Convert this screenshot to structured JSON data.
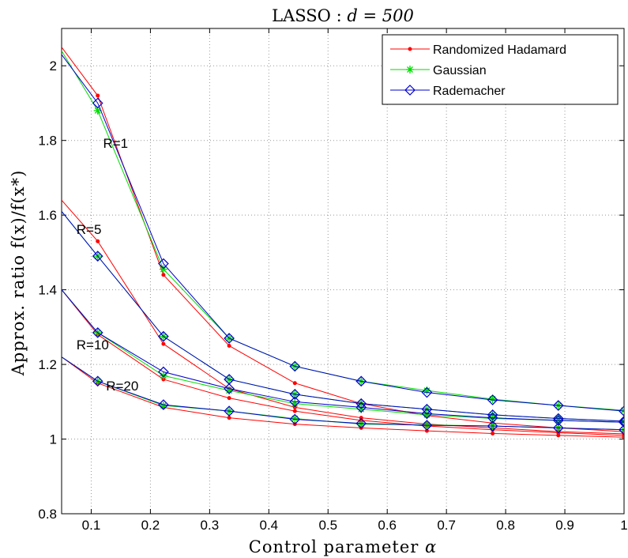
{
  "chart_data": {
    "type": "line",
    "title_text": "LASSO : ",
    "title_math": "d = 500",
    "xlabel_text": "Control parameter ",
    "xlabel_symbol": "α",
    "ylabel": "Approx. ratio f(x)/f(x*)",
    "xlim": [
      0.05,
      1.0
    ],
    "ylim": [
      0.8,
      2.1
    ],
    "xticks": [
      0.1,
      0.2,
      0.3,
      0.4,
      0.5,
      0.6,
      0.7,
      0.8,
      0.9,
      1
    ],
    "xtick_labels": [
      "0.1",
      "0.2",
      "0.3",
      "0.4",
      "0.5",
      "0.6",
      "0.7",
      "0.8",
      "0.9",
      "1"
    ],
    "yticks": [
      0.8,
      1.0,
      1.2,
      1.4,
      1.6,
      1.8,
      2.0
    ],
    "ytick_labels": [
      "0.8",
      "1",
      "1.2",
      "1.4",
      "1.6",
      "1.8",
      "2"
    ],
    "grid": true,
    "legend_position": "top-right",
    "x": [
      0.05,
      0.111,
      0.222,
      0.333,
      0.444,
      0.556,
      0.667,
      0.778,
      0.889,
      1.0
    ],
    "series": [
      {
        "name": "Randomized Hadamard",
        "color": "#ff0000",
        "marker": "dot",
        "curves": [
          {
            "label": "R=1",
            "values": [
              2.05,
              1.92,
              1.44,
              1.25,
              1.15,
              1.095,
              1.063,
              1.043,
              1.03,
              1.02
            ]
          },
          {
            "label": "R=5",
            "values": [
              1.64,
              1.53,
              1.255,
              1.135,
              1.085,
              1.057,
              1.04,
              1.03,
              1.02,
              1.014
            ]
          },
          {
            "label": "R=10",
            "values": [
              1.4,
              1.28,
              1.16,
              1.11,
              1.075,
              1.05,
              1.035,
              1.025,
              1.017,
              1.01
            ]
          },
          {
            "label": "R=20",
            "values": [
              1.22,
              1.15,
              1.085,
              1.057,
              1.04,
              1.03,
              1.022,
              1.015,
              1.01,
              1.005
            ]
          }
        ]
      },
      {
        "name": "Gaussian",
        "color": "#00dd00",
        "marker": "star",
        "curves": [
          {
            "label": "R=1",
            "values": [
              2.04,
              1.88,
              1.455,
              1.27,
              1.195,
              1.155,
              1.13,
              1.107,
              1.09,
              1.077
            ]
          },
          {
            "label": "R=5",
            "values": [
              1.61,
              1.49,
              1.275,
              1.16,
              1.12,
              1.095,
              1.08,
              1.065,
              1.055,
              1.048
            ]
          },
          {
            "label": "R=10",
            "values": [
              1.4,
              1.285,
              1.17,
              1.13,
              1.095,
              1.08,
              1.065,
              1.055,
              1.05,
              1.045
            ]
          },
          {
            "label": "R=20",
            "values": [
              1.22,
              1.155,
              1.09,
              1.075,
              1.055,
              1.04,
              1.038,
              1.035,
              1.03,
              1.025
            ]
          }
        ]
      },
      {
        "name": "Rademacher",
        "color": "#0000cc",
        "marker": "diamond",
        "curves": [
          {
            "label": "R=1",
            "values": [
              2.03,
              1.9,
              1.47,
              1.27,
              1.195,
              1.155,
              1.125,
              1.105,
              1.09,
              1.075
            ]
          },
          {
            "label": "R=5",
            "values": [
              1.61,
              1.49,
              1.275,
              1.16,
              1.12,
              1.095,
              1.08,
              1.065,
              1.055,
              1.048
            ]
          },
          {
            "label": "R=10",
            "values": [
              1.4,
              1.285,
              1.18,
              1.135,
              1.1,
              1.085,
              1.068,
              1.057,
              1.05,
              1.045
            ]
          },
          {
            "label": "R=20",
            "values": [
              1.22,
              1.155,
              1.092,
              1.075,
              1.053,
              1.042,
              1.037,
              1.035,
              1.03,
              1.025
            ]
          }
        ]
      }
    ],
    "annotations": [
      {
        "text": "R=1",
        "x": 0.12,
        "y": 1.78
      },
      {
        "text": "R=5",
        "x": 0.075,
        "y": 1.55
      },
      {
        "text": "R=10",
        "x": 0.075,
        "y": 1.24
      },
      {
        "text": "R=20",
        "x": 0.125,
        "y": 1.13
      }
    ]
  }
}
